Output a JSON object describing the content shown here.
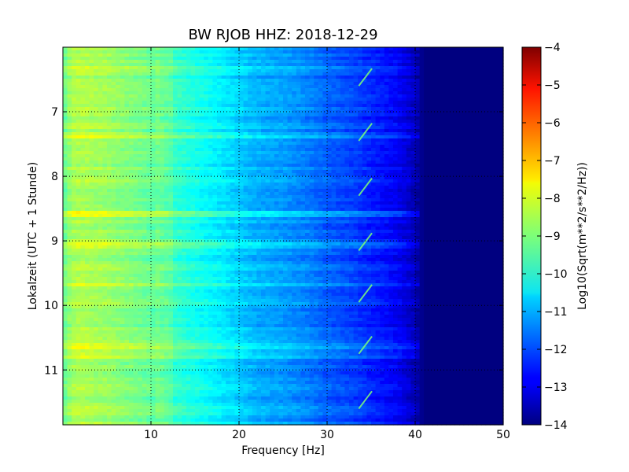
{
  "chart_data": {
    "type": "heatmap",
    "title": "BW RJOB HHZ: 2018-12-29",
    "xlabel": "Frequency [Hz]",
    "ylabel": "Lokalzeit (UTC + 1 Stunde)",
    "xlim": [
      0,
      50
    ],
    "ylim": [
      11.85,
      6.0
    ],
    "x_ticks": [
      10,
      20,
      30,
      40,
      50
    ],
    "x_tick_labels": [
      "10",
      "20",
      "30",
      "40",
      "50"
    ],
    "y_ticks": [
      7,
      8,
      9,
      10,
      11
    ],
    "y_tick_labels": [
      "7",
      "8",
      "9",
      "10",
      "11"
    ],
    "y_axis_inverted": true,
    "grid": true,
    "colormap": "jet",
    "colorbar": {
      "label": "Log10(Sqrt(m**2/s**2/Hz))",
      "range": [
        -14,
        -4
      ],
      "ticks": [
        -4,
        -5,
        -6,
        -7,
        -8,
        -9,
        -10,
        -11,
        -12,
        -13,
        -14
      ],
      "tick_labels": [
        "−4",
        "−5",
        "−6",
        "−7",
        "−8",
        "−9",
        "−10",
        "−11",
        "−12",
        "−13",
        "−14"
      ]
    },
    "spectrum_profile": {
      "frequency_hz": [
        0,
        1,
        2,
        5,
        8,
        10,
        12,
        15,
        18,
        20,
        22,
        25,
        28,
        30,
        33,
        35,
        38,
        39,
        40,
        41,
        50
      ],
      "log10_amplitude": [
        -9.3,
        -8.6,
        -8.5,
        -8.7,
        -9.0,
        -9.2,
        -9.6,
        -10.0,
        -10.4,
        -10.7,
        -11.0,
        -11.2,
        -11.5,
        -11.8,
        -12.1,
        -12.4,
        -12.8,
        -13.1,
        -13.4,
        -14.0,
        -14.0
      ]
    },
    "notes_visible": "Horizontal energy bands at about 6.3, 7.35, 8.55, 9.05, 9.65, 10.55-10.8, 11.6 h; recurring short chirp near 34 Hz roughly every 0.8 h"
  }
}
